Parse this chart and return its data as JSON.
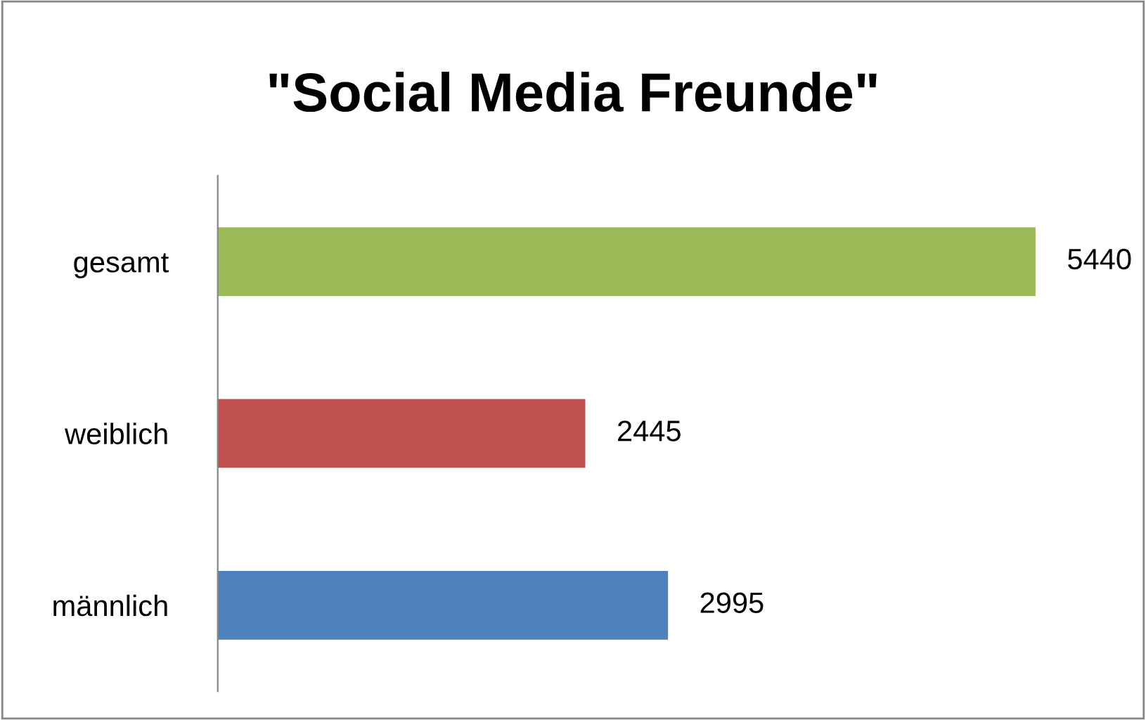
{
  "chart_data": {
    "type": "bar",
    "orientation": "horizontal",
    "title": "\"Social Media Freunde\"",
    "categories": [
      "gesamt",
      "weiblich",
      "männlich"
    ],
    "values": [
      5440,
      2445,
      2995
    ],
    "colors": [
      "#9bbb59",
      "#c0504d",
      "#4f81bd"
    ],
    "data_labels": true,
    "grid": false,
    "legend": false
  }
}
